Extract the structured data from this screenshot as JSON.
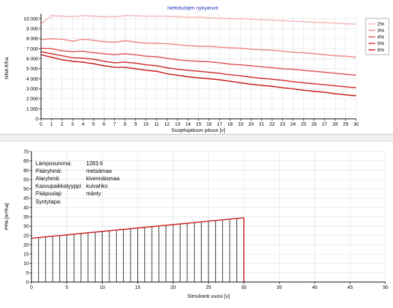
{
  "chart_data": [
    {
      "type": "line",
      "title": "Nettotulojen nykyarvot",
      "xlabel": "Suojelujakson pituus [v]",
      "ylabel": "NNA €/ha",
      "xlim": [
        0,
        30
      ],
      "ylim": [
        0,
        10500
      ],
      "x": [
        0,
        1,
        2,
        3,
        4,
        5,
        6,
        7,
        8,
        9,
        10,
        11,
        12,
        13,
        14,
        15,
        16,
        17,
        18,
        19,
        20,
        21,
        22,
        23,
        24,
        25,
        26,
        27,
        28,
        29,
        30
      ],
      "x_ticks": [
        "0",
        "1",
        "2",
        "3",
        "4",
        "5",
        "6",
        "7",
        "8",
        "9",
        "10",
        "11",
        "12",
        "13",
        "14",
        "15",
        "16",
        "17",
        "18",
        "19",
        "20",
        "21",
        "22",
        "23",
        "24",
        "25",
        "26",
        "27",
        "28",
        "29",
        "30"
      ],
      "y_ticks": [
        "0",
        "1 000",
        "2 000",
        "3 000",
        "4 000",
        "5 000",
        "6 000",
        "7 000",
        "8 000",
        "9 000",
        "10 000"
      ],
      "grid": true,
      "legend_position": "top-right",
      "series": [
        {
          "name": "2%",
          "color": "#f4b8b8",
          "values": [
            9500,
            10300,
            10250,
            10200,
            10300,
            10250,
            10200,
            10200,
            10300,
            10300,
            10250,
            10250,
            10250,
            10200,
            10150,
            10150,
            10100,
            10050,
            10000,
            10000,
            9950,
            9900,
            9850,
            9800,
            9750,
            9700,
            9650,
            9600,
            9550,
            9500,
            9450
          ]
        },
        {
          "name": "3%",
          "color": "#ec8a8a",
          "values": [
            7900,
            8000,
            7950,
            7750,
            7950,
            7850,
            7700,
            7650,
            7800,
            7650,
            7550,
            7550,
            7500,
            7400,
            7300,
            7250,
            7250,
            7150,
            7100,
            7050,
            6950,
            6900,
            6850,
            6750,
            6650,
            6600,
            6500,
            6400,
            6300,
            6250,
            6150
          ]
        },
        {
          "name": "4%",
          "color": "#e05a5a",
          "values": [
            7050,
            7000,
            6800,
            6700,
            6750,
            6600,
            6500,
            6400,
            6500,
            6400,
            6250,
            6200,
            6050,
            5900,
            5800,
            5750,
            5700,
            5600,
            5450,
            5400,
            5300,
            5200,
            5100,
            5000,
            4950,
            4850,
            4750,
            4650,
            4550,
            4450,
            4350
          ]
        },
        {
          "name": "5%",
          "color": "#d43434",
          "values": [
            6700,
            6500,
            6300,
            6100,
            6050,
            5950,
            5750,
            5600,
            5650,
            5550,
            5400,
            5300,
            5100,
            4950,
            4850,
            4750,
            4650,
            4550,
            4400,
            4300,
            4150,
            4050,
            3950,
            3850,
            3700,
            3600,
            3500,
            3400,
            3300,
            3200,
            3100
          ]
        },
        {
          "name": "6%",
          "color": "#c81e1e",
          "values": [
            6400,
            6150,
            5900,
            5750,
            5650,
            5500,
            5300,
            5150,
            5150,
            5000,
            4850,
            4750,
            4500,
            4350,
            4200,
            4100,
            4000,
            3900,
            3750,
            3600,
            3450,
            3350,
            3250,
            3100,
            3000,
            2850,
            2750,
            2650,
            2500,
            2400,
            2300
          ]
        }
      ]
    },
    {
      "type": "area",
      "title": "",
      "xlabel": "Simulointi vuosi [v]",
      "ylabel": "PPA [m²/ha]",
      "xlim": [
        0,
        50
      ],
      "ylim": [
        0,
        70
      ],
      "x_ticks": [
        "0",
        "5",
        "10",
        "15",
        "20",
        "25",
        "30",
        "35",
        "40",
        "45",
        "50"
      ],
      "y_ticks": [
        "0",
        "5",
        "10",
        "15",
        "20",
        "25",
        "30",
        "35",
        "40",
        "45",
        "50",
        "55",
        "60",
        "65",
        "70"
      ],
      "grid": true,
      "series": [
        {
          "color": "#cc2222",
          "x": [
            0,
            30
          ],
          "values": [
            23.5,
            34.5
          ]
        }
      ],
      "info": [
        {
          "label": "Lämposumma:",
          "value": "1283.6"
        },
        {
          "label": "Pääryhmä:",
          "value": "metsämaa"
        },
        {
          "label": "Alaryhmä:",
          "value": "kivennäismaa"
        },
        {
          "label": "Kasvupaikkatyyppi:",
          "value": "kuivahko"
        },
        {
          "label": "Pääpuulaji:",
          "value": "mänty"
        },
        {
          "label": "Syntytapa:",
          "value": ""
        }
      ]
    }
  ]
}
